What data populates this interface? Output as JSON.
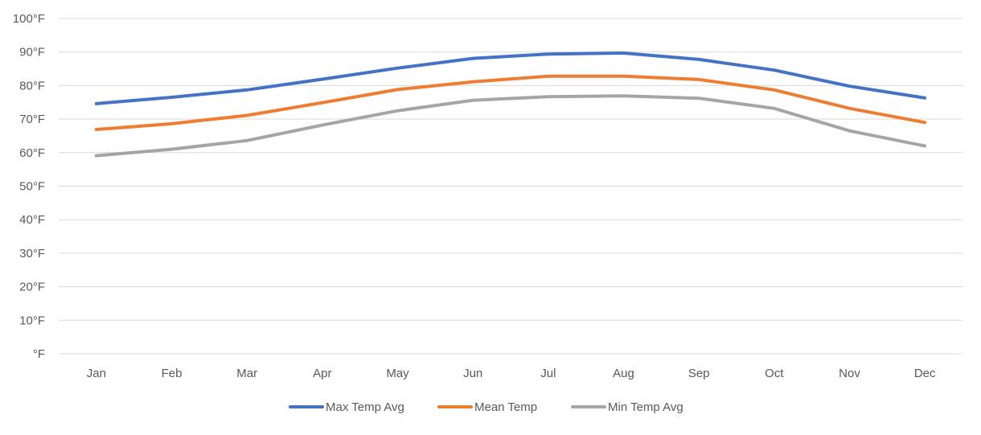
{
  "chart_data": {
    "type": "line",
    "title": "",
    "xlabel": "",
    "ylabel": "",
    "categories": [
      "Jan",
      "Feb",
      "Mar",
      "Apr",
      "May",
      "Jun",
      "Jul",
      "Aug",
      "Sep",
      "Oct",
      "Nov",
      "Dec"
    ],
    "y_ticks": [
      0,
      10,
      20,
      30,
      40,
      50,
      60,
      70,
      80,
      90,
      100
    ],
    "y_tick_labels": [
      "°F",
      "10°F",
      "20°F",
      "30°F",
      "40°F",
      "50°F",
      "60°F",
      "70°F",
      "80°F",
      "90°F",
      "100°F"
    ],
    "ylim": [
      0,
      100
    ],
    "grid": "horizontal",
    "legend_position": "bottom",
    "series": [
      {
        "name": "Max Temp Avg",
        "color": "#4472C4",
        "values": [
          74.6,
          76.5,
          78.7,
          81.9,
          85.2,
          88.1,
          89.4,
          89.7,
          87.8,
          84.6,
          79.8,
          76.3
        ]
      },
      {
        "name": "Mean Temp",
        "color": "#ED7D31",
        "values": [
          66.9,
          68.6,
          71.1,
          74.9,
          78.8,
          81.1,
          82.8,
          82.8,
          81.8,
          78.7,
          73.2,
          69.0
        ]
      },
      {
        "name": "Min Temp Avg",
        "color": "#A5A5A5",
        "values": [
          59.1,
          61.0,
          63.6,
          68.2,
          72.5,
          75.6,
          76.7,
          76.9,
          76.2,
          73.2,
          66.5,
          62.0
        ]
      }
    ]
  }
}
